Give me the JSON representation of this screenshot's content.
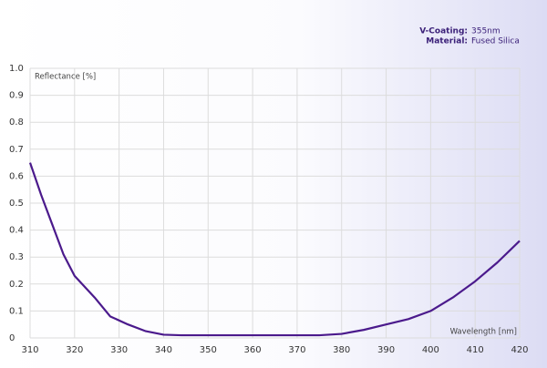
{
  "chart_data": {
    "type": "line",
    "annotations": [
      {
        "label": "V-Coating:",
        "value": "355nm"
      },
      {
        "label": "Material:",
        "value": "Fused Silica"
      }
    ],
    "y_label": "Reflectance [%]",
    "x_label": "Wavelength [nm]",
    "x": [
      310,
      312.5,
      315,
      317.5,
      320,
      324.5,
      328,
      332,
      336,
      340,
      344,
      350,
      355,
      360,
      365,
      370,
      375,
      380,
      385,
      390,
      395,
      400,
      405,
      410,
      415,
      420
    ],
    "series": [
      {
        "name": "Reflectance",
        "color": "#4b1a8c",
        "values": [
          0.65,
          0.53,
          0.42,
          0.31,
          0.23,
          0.15,
          0.08,
          0.05,
          0.025,
          0.012,
          0.01,
          0.01,
          0.01,
          0.01,
          0.01,
          0.01,
          0.01,
          0.015,
          0.03,
          0.05,
          0.07,
          0.1,
          0.15,
          0.21,
          0.28,
          0.36
        ]
      }
    ],
    "xlim": [
      310,
      420
    ],
    "xticks": [
      310,
      320,
      330,
      340,
      350,
      360,
      370,
      380,
      390,
      400,
      410,
      420
    ],
    "ylim": [
      0,
      1
    ],
    "yticks": [
      0,
      0.1,
      0.2,
      0.3,
      0.4,
      0.5,
      0.6,
      0.7,
      0.8,
      0.9,
      {
        "value": 1,
        "label": "1.0"
      }
    ],
    "grid": true
  }
}
